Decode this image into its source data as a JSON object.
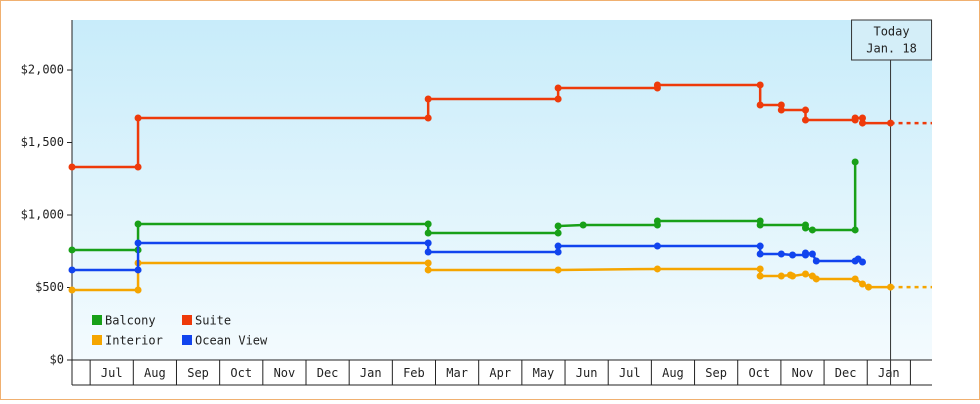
{
  "chart_data": {
    "type": "line",
    "step": true,
    "xlim": [
      -0.42,
      19.5
    ],
    "xticks": [
      {
        "value": 0.5,
        "label": "Jul"
      },
      {
        "value": 1.5,
        "label": "Aug"
      },
      {
        "value": 2.5,
        "label": "Sep"
      },
      {
        "value": 3.5,
        "label": "Oct"
      },
      {
        "value": 4.5,
        "label": "Nov"
      },
      {
        "value": 5.5,
        "label": "Dec"
      },
      {
        "value": 6.5,
        "label": "Jan"
      },
      {
        "value": 7.5,
        "label": "Feb"
      },
      {
        "value": 8.5,
        "label": "Mar"
      },
      {
        "value": 9.5,
        "label": "Apr"
      },
      {
        "value": 10.5,
        "label": "May"
      },
      {
        "value": 11.5,
        "label": "Jun"
      },
      {
        "value": 12.5,
        "label": "Jul"
      },
      {
        "value": 13.5,
        "label": "Aug"
      },
      {
        "value": 14.5,
        "label": "Sep"
      },
      {
        "value": 15.5,
        "label": "Oct"
      },
      {
        "value": 16.5,
        "label": "Nov"
      },
      {
        "value": 17.5,
        "label": "Dec"
      },
      {
        "value": 18.5,
        "label": "Jan"
      }
    ],
    "ylim": [
      0,
      2345
    ],
    "yticks": [
      {
        "value": 0,
        "label": "$0"
      },
      {
        "value": 500,
        "label": "$500"
      },
      {
        "value": 1000,
        "label": "$1,000"
      },
      {
        "value": 1500,
        "label": "$1,500"
      },
      {
        "value": 2000,
        "label": "$2,000"
      }
    ],
    "annotations": [
      {
        "text": [
          "Today",
          "Jan. 18"
        ],
        "x": 18.54
      }
    ],
    "series": [
      {
        "name": "Balcony",
        "color": "#18a018",
        "projection": false,
        "x": [
          -0.42,
          1.11,
          1.11,
          7.83,
          7.83,
          10.84,
          10.84,
          11.42,
          13.14,
          13.14,
          15.52,
          15.52,
          16.57,
          16.57,
          16.73,
          17.72,
          17.72
        ],
        "values": [
          759,
          759,
          938,
          938,
          876,
          876,
          924,
          931,
          931,
          959,
          959,
          931,
          931,
          910,
          897,
          897,
          1366
        ]
      },
      {
        "name": "Suite",
        "color": "#ee3a0a",
        "projection": true,
        "x": [
          -0.42,
          1.11,
          1.11,
          7.83,
          7.83,
          10.84,
          10.84,
          13.14,
          13.14,
          15.52,
          15.52,
          16.01,
          16.01,
          16.57,
          16.57,
          17.72,
          17.72,
          17.89,
          17.89,
          18.54
        ],
        "values": [
          1331,
          1331,
          1669,
          1669,
          1800,
          1800,
          1876,
          1876,
          1897,
          1897,
          1759,
          1759,
          1724,
          1724,
          1655,
          1655,
          1669,
          1669,
          1634,
          1634
        ]
      },
      {
        "name": "Interior",
        "color": "#f5a500",
        "projection": true,
        "x": [
          -0.42,
          1.11,
          1.11,
          7.83,
          7.83,
          10.84,
          13.14,
          15.52,
          15.52,
          16.01,
          16.22,
          16.27,
          16.57,
          16.73,
          16.82,
          17.72,
          17.89,
          18.03,
          18.54
        ],
        "values": [
          483,
          483,
          669,
          669,
          621,
          621,
          628,
          628,
          579,
          579,
          586,
          579,
          593,
          579,
          559,
          559,
          524,
          503,
          503
        ]
      },
      {
        "name": "Ocean View",
        "color": "#1144ee",
        "projection": false,
        "x": [
          -0.42,
          1.11,
          1.11,
          7.83,
          7.83,
          10.84,
          10.84,
          13.14,
          15.52,
          15.52,
          16.01,
          16.27,
          16.57,
          16.57,
          16.73,
          16.82,
          17.72,
          17.79,
          17.89
        ],
        "values": [
          621,
          621,
          807,
          807,
          745,
          745,
          786,
          786,
          786,
          731,
          731,
          724,
          724,
          738,
          731,
          683,
          683,
          697,
          676
        ]
      }
    ]
  }
}
